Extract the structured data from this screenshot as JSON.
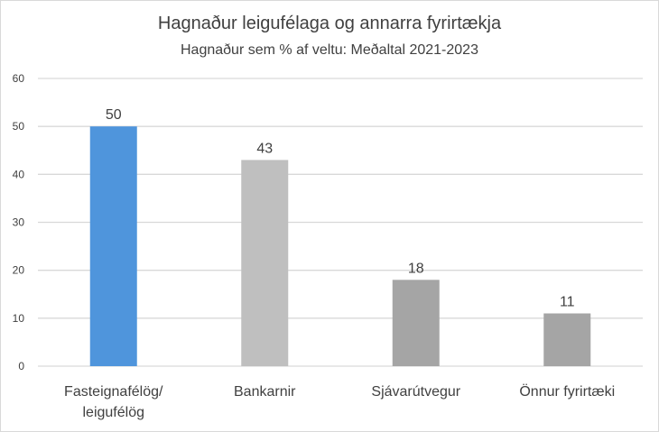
{
  "chart_data": {
    "type": "bar",
    "title": "Hagnaður leigufélaga og annarra fyrirtækja",
    "subtitle": "Hagnaður sem % af veltu: Meðaltal 2021-2023",
    "categories": [
      [
        "Fasteignafélög/",
        "leigufélög"
      ],
      [
        "Bankarnir"
      ],
      [
        "Sjávarútvegur"
      ],
      [
        "Önnur fyrirtæki"
      ]
    ],
    "values": [
      50,
      43,
      18,
      11
    ],
    "data_labels": [
      "50",
      "43",
      "18",
      "11"
    ],
    "colors": [
      "#4f95dc",
      "#bfbfbf",
      "#a5a5a5",
      "#a5a5a5"
    ],
    "yticks": [
      0,
      10,
      20,
      30,
      40,
      50,
      60
    ],
    "ylim": [
      0,
      60
    ],
    "xlabel": "",
    "ylabel": "",
    "grid": true,
    "legend": "none"
  }
}
